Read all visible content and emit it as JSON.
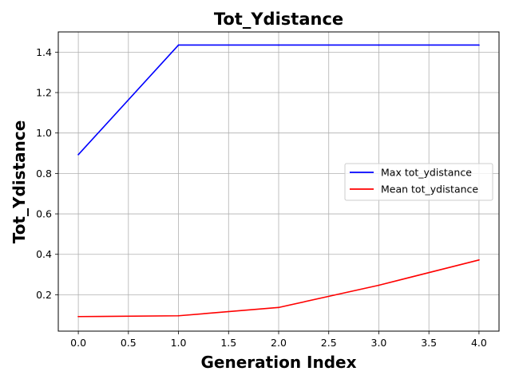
{
  "chart_data": {
    "type": "line",
    "title": "Tot_Ydistance",
    "xlabel": "Generation Index",
    "ylabel": "Tot_Ydistance",
    "x": [
      0,
      1,
      2,
      3,
      4
    ],
    "series": [
      {
        "name": "Max tot_ydistance",
        "color": "#0000ff",
        "values": [
          0.893,
          1.435,
          1.435,
          1.435,
          1.435
        ]
      },
      {
        "name": "Mean tot_ydistance",
        "color": "#ff0000",
        "values": [
          0.092,
          0.096,
          0.137,
          0.247,
          0.372
        ]
      }
    ],
    "xlim": [
      -0.2,
      4.2
    ],
    "ylim": [
      0.02,
      1.5
    ],
    "xticks": [
      "0.0",
      "0.5",
      "1.0",
      "1.5",
      "2.0",
      "2.5",
      "3.0",
      "3.5",
      "4.0"
    ],
    "yticks": [
      "0.2",
      "0.4",
      "0.6",
      "0.8",
      "1.0",
      "1.2",
      "1.4"
    ],
    "grid": true,
    "legend_position": "center-right"
  }
}
